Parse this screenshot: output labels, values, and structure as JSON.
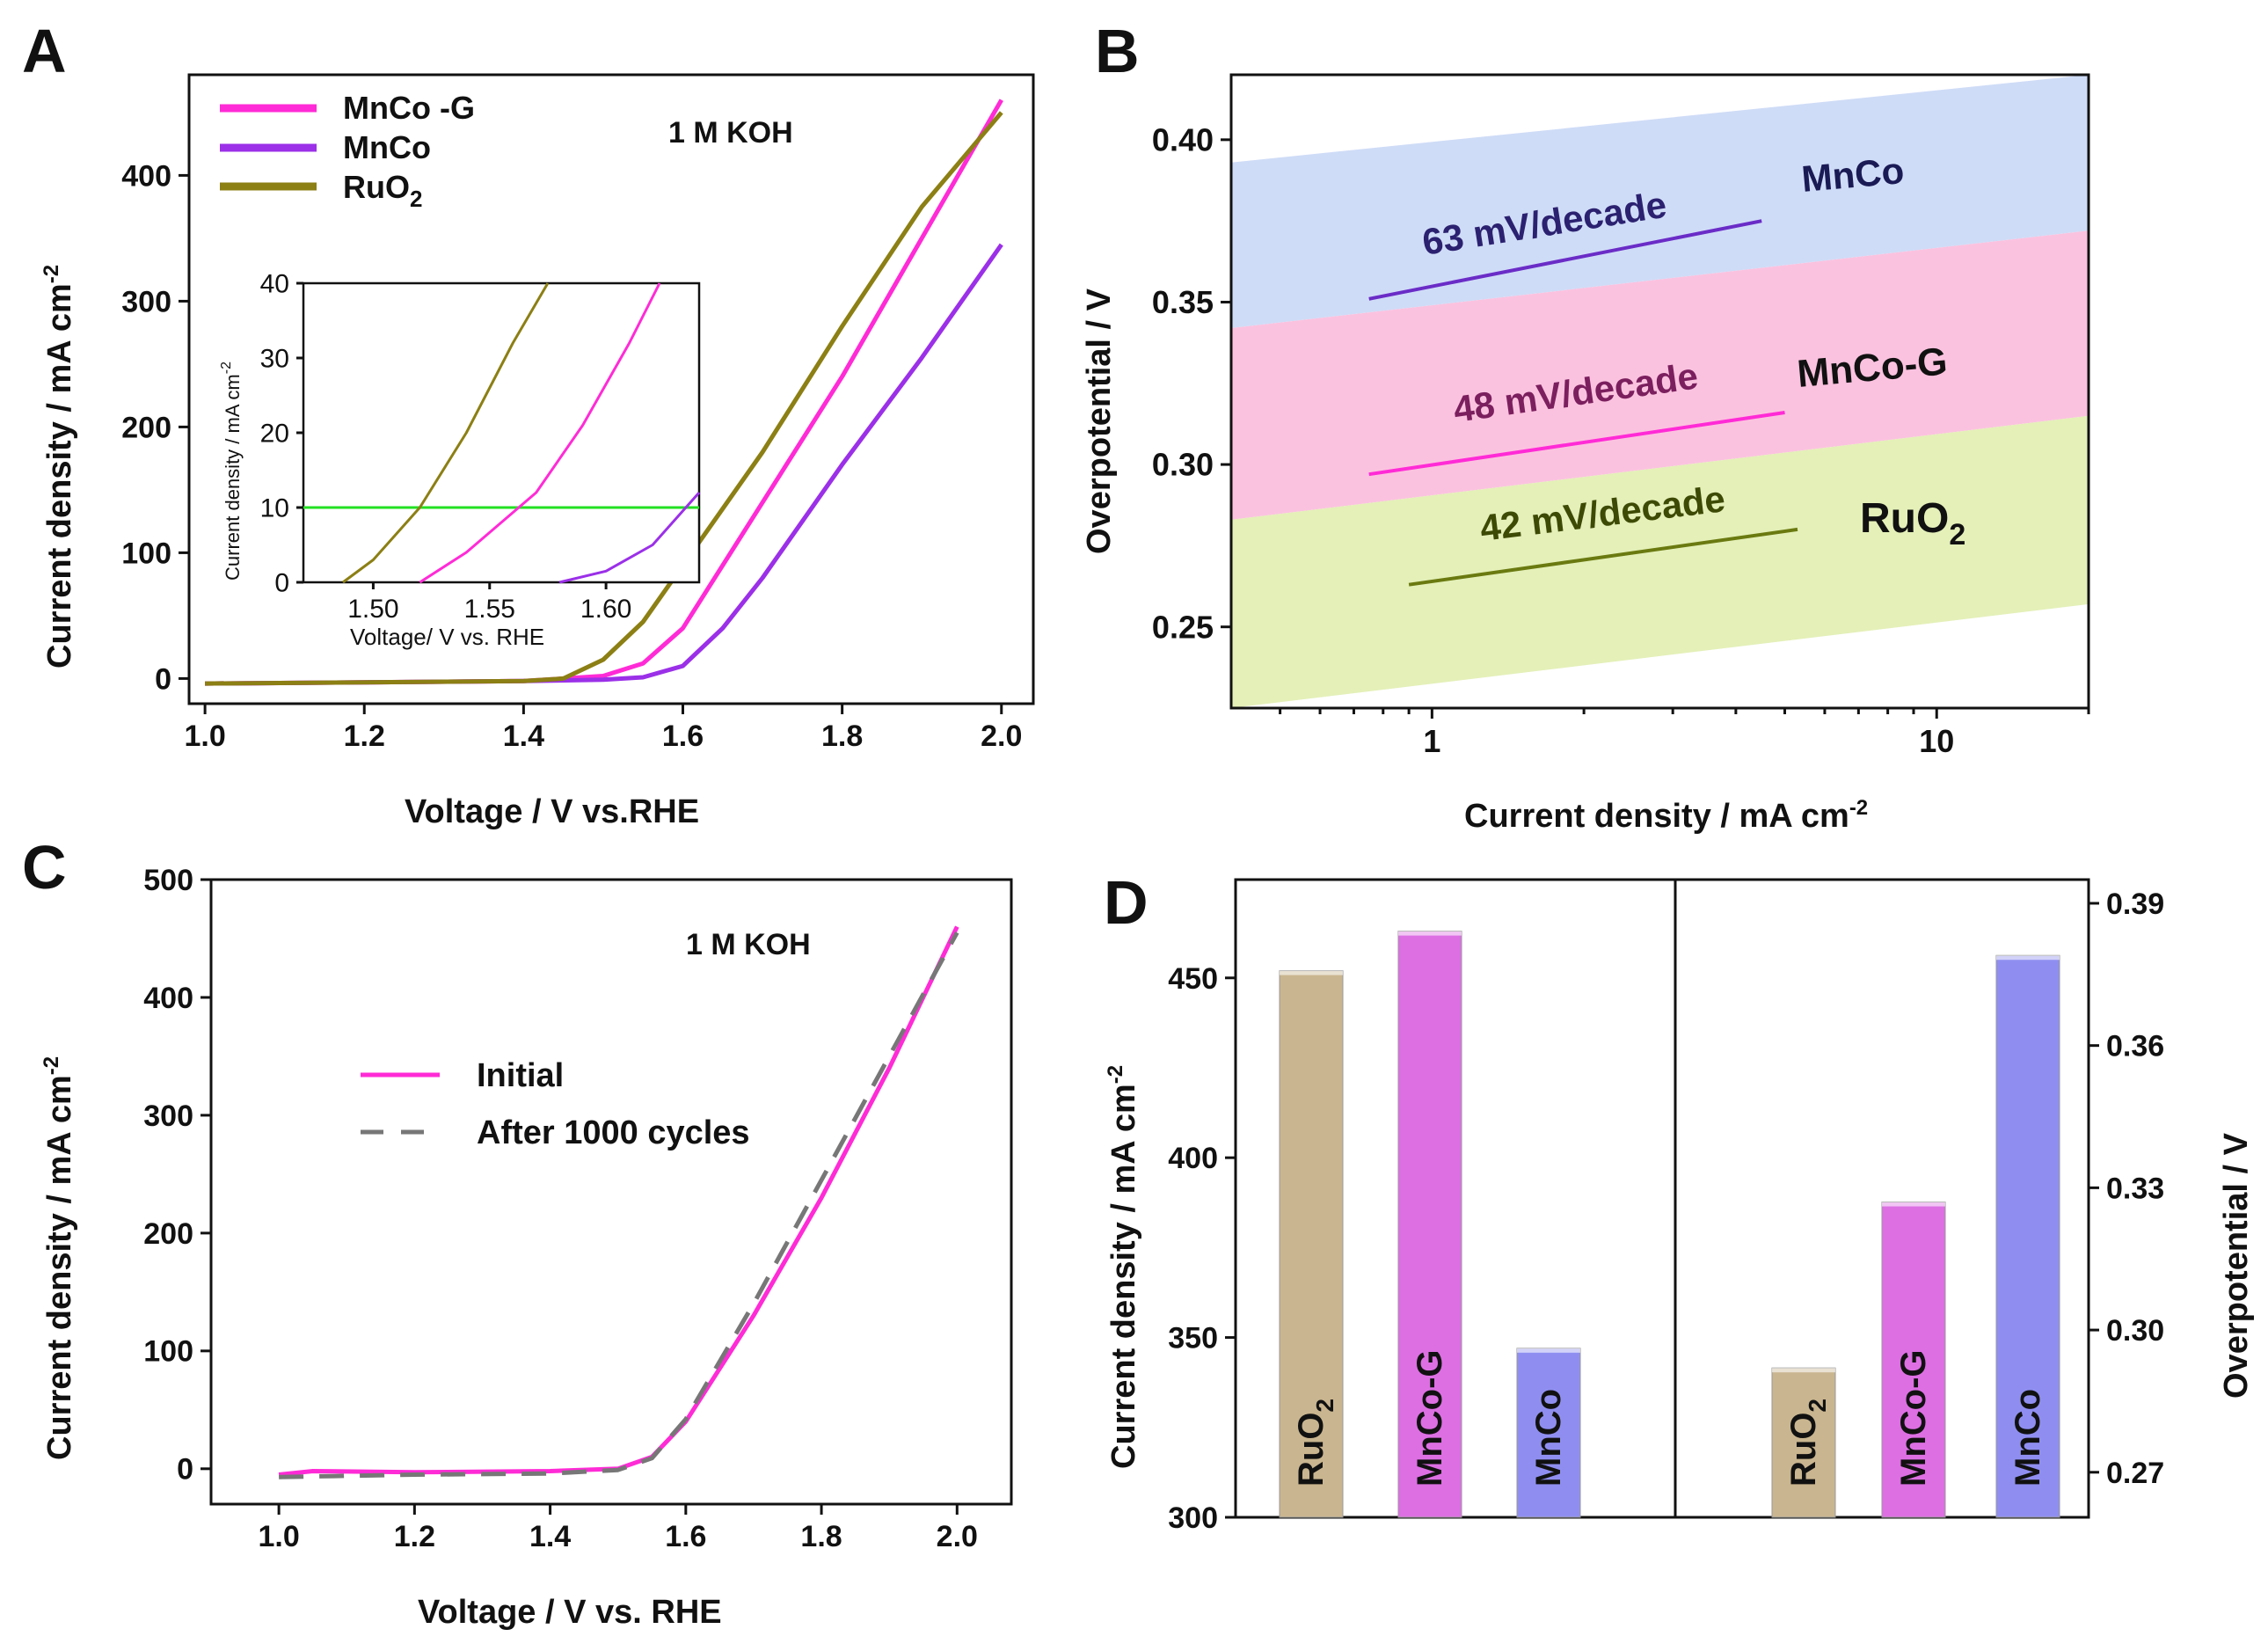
{
  "chart_data": [
    {
      "panel": "A",
      "type": "line",
      "annotation": "1 M KOH",
      "xlabel": "Voltage / V vs.RHE",
      "ylabel": "Current density / mA cm",
      "ylabel_sup": "-2",
      "xlim": [
        0.98,
        2.04
      ],
      "ylim": [
        -20,
        480
      ],
      "xticks": [
        "1.0",
        "1.2",
        "1.4",
        "1.6",
        "1.8",
        "2.0"
      ],
      "yticks": [
        "0",
        "100",
        "200",
        "300",
        "400"
      ],
      "legend": [
        "MnCo -G",
        "MnCo",
        "RuO"
      ],
      "legend_sub": "2",
      "series": [
        {
          "name": "MnCo-G",
          "color": "#ff2bd6",
          "x": [
            1.0,
            1.2,
            1.4,
            1.5,
            1.55,
            1.6,
            1.7,
            1.8,
            1.9,
            2.0
          ],
          "y": [
            -4,
            -3,
            -2,
            2,
            12,
            40,
            140,
            240,
            350,
            460
          ]
        },
        {
          "name": "MnCo",
          "color": "#9b30e8",
          "x": [
            1.0,
            1.2,
            1.4,
            1.5,
            1.55,
            1.6,
            1.65,
            1.7,
            1.8,
            1.9,
            2.0
          ],
          "y": [
            -4,
            -3,
            -2,
            -1,
            1,
            10,
            40,
            80,
            170,
            255,
            345
          ]
        },
        {
          "name": "RuO2",
          "color": "#8c7f14",
          "x": [
            1.0,
            1.2,
            1.4,
            1.45,
            1.5,
            1.55,
            1.6,
            1.7,
            1.8,
            1.9,
            2.0
          ],
          "y": [
            -4,
            -3,
            -2,
            0,
            15,
            45,
            90,
            180,
            280,
            375,
            450
          ]
        }
      ],
      "inset": {
        "xlabel": "Voltage/ V vs. RHE",
        "ylabel": "Current density / mA cm",
        "ylabel_sup": "-2",
        "xlim": [
          1.47,
          1.64
        ],
        "ylim": [
          0,
          40
        ],
        "xticks": [
          "1.50",
          "1.55",
          "1.60"
        ],
        "yticks": [
          "0",
          "10",
          "20",
          "30",
          "40"
        ],
        "hline": 10,
        "series": [
          {
            "name": "RuO2",
            "color": "#8c7f14",
            "x": [
              1.487,
              1.5,
              1.52,
              1.54,
              1.56,
              1.575
            ],
            "y": [
              0,
              3,
              10,
              20,
              32,
              40
            ]
          },
          {
            "name": "MnCo-G",
            "color": "#ff2bd6",
            "x": [
              1.52,
              1.54,
              1.555,
              1.57,
              1.59,
              1.61,
              1.623
            ],
            "y": [
              0,
              4,
              8,
              12,
              21,
              32,
              40
            ]
          },
          {
            "name": "MnCo",
            "color": "#9b30e8",
            "x": [
              1.58,
              1.6,
              1.62,
              1.64
            ],
            "y": [
              0,
              1.5,
              5,
              12
            ]
          }
        ]
      }
    },
    {
      "panel": "B",
      "type": "line",
      "xscale": "log",
      "xlabel": "Current density / mA cm",
      "xlabel_sup": "-2",
      "ylabel": "Overpotential / V",
      "xlim": [
        0.4,
        20
      ],
      "ylim": [
        0.225,
        0.42
      ],
      "xticks": [
        "1",
        "10"
      ],
      "yticks": [
        "0.25",
        "0.30",
        "0.35",
        "0.40"
      ],
      "series": [
        {
          "name": "MnCo",
          "color": "#6a2cc7",
          "band": "#cfdcf7",
          "band_low": [
            0.342,
            0.372
          ],
          "band_high": [
            0.393,
            0.423
          ],
          "x": [
            0.75,
            4.5
          ],
          "y": [
            0.351,
            0.375
          ],
          "slope_label": "63 mV/decade",
          "name_label": "MnCo"
        },
        {
          "name": "MnCo-G",
          "color": "#ff2bd6",
          "band": "#fbc2df",
          "band_low": [
            0.283,
            0.315
          ],
          "band_high": [
            0.342,
            0.372
          ],
          "x": [
            0.75,
            5.0
          ],
          "y": [
            0.297,
            0.316
          ],
          "slope_label": "48 mV/decade",
          "name_label": "MnCo-G"
        },
        {
          "name": "RuO2",
          "color": "#6b7a10",
          "band": "#e4f0b8",
          "band_low": [
            0.225,
            0.257
          ],
          "band_high": [
            0.283,
            0.315
          ],
          "x": [
            0.9,
            5.3
          ],
          "y": [
            0.263,
            0.28
          ],
          "slope_label": "42 mV/decade",
          "name_label": "RuO",
          "name_sub": "2"
        }
      ]
    },
    {
      "panel": "C",
      "type": "line",
      "annotation": "1 M KOH",
      "xlabel": "Voltage / V vs. RHE",
      "ylabel": "Current density / mA cm",
      "ylabel_sup": "-2",
      "xlim": [
        0.9,
        2.08
      ],
      "ylim": [
        -30,
        500
      ],
      "xticks": [
        "1.0",
        "1.2",
        "1.4",
        "1.6",
        "1.8",
        "2.0"
      ],
      "yticks": [
        "0",
        "100",
        "200",
        "300",
        "400",
        "500"
      ],
      "legend": [
        "Initial",
        "After 1000 cycles"
      ],
      "series": [
        {
          "name": "Initial",
          "color": "#ff2bd6",
          "x": [
            1.0,
            1.05,
            1.2,
            1.4,
            1.5,
            1.55,
            1.6,
            1.7,
            1.8,
            1.9,
            2.0
          ],
          "y": [
            -5,
            -2,
            -3,
            -2,
            0,
            10,
            40,
            130,
            230,
            340,
            460
          ]
        },
        {
          "name": "After 1000 cycles",
          "color": "#777777",
          "dash": true,
          "x": [
            1.0,
            1.2,
            1.4,
            1.5,
            1.55,
            1.6,
            1.7,
            1.8,
            1.9,
            2.0
          ],
          "y": [
            -7,
            -5,
            -4,
            -1,
            9,
            42,
            140,
            245,
            350,
            455
          ]
        }
      ]
    },
    {
      "panel": "D",
      "type": "bar",
      "ylabel": "Current density / mA cm",
      "ylabel_sup": "-2",
      "y2label": "Overpotential / V",
      "ylim": [
        300,
        470
      ],
      "y2lim": [
        0.2605,
        0.395
      ],
      "yticks": [
        "300",
        "350",
        "400",
        "450"
      ],
      "y2ticks": [
        "0.27",
        "0.30",
        "0.33",
        "0.36",
        "0.39"
      ],
      "left_group": [
        {
          "name": "RuO",
          "sub": "2",
          "value": 452,
          "color": "#c9b58f"
        },
        {
          "name": "MnCo-G",
          "value": 463,
          "color": "#dd6fe3"
        },
        {
          "name": "MnCo",
          "value": 347,
          "color": "#8f8ef0"
        }
      ],
      "right_group": [
        {
          "name": "RuO",
          "sub": "2",
          "value": 0.292,
          "color": "#c9b58f"
        },
        {
          "name": "MnCo-G",
          "value": 0.327,
          "color": "#dd6fe3"
        },
        {
          "name": "MnCo",
          "value": 0.379,
          "color": "#8f8ef0"
        }
      ]
    }
  ],
  "panel_letters": [
    "A",
    "B",
    "C",
    "D"
  ]
}
